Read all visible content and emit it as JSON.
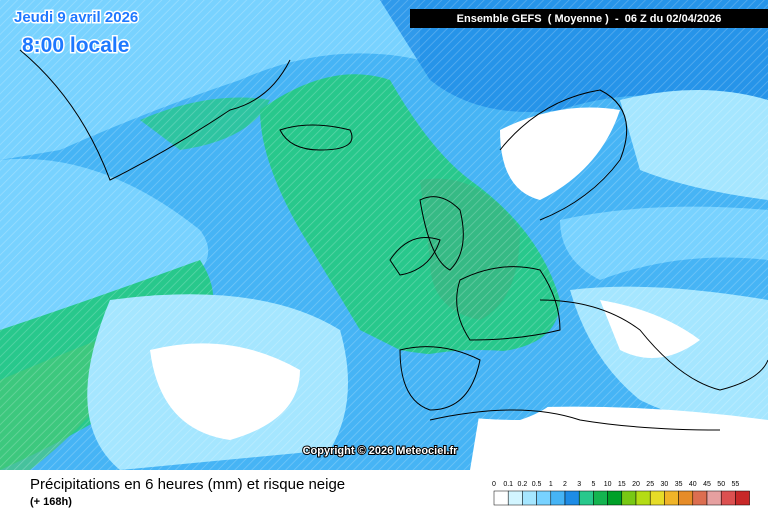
{
  "header": {
    "date": "Jeudi 9 avril 2026",
    "time": "8:00 locale",
    "run": "Ensemble GEFS  ( Moyenne )  -  06 Z du 02/04/2026"
  },
  "map": {
    "copyright": "Copyright © 2026 Meteociel.fr"
  },
  "footer": {
    "title": "Précipitations en 6 heures (mm) et risque neige",
    "lead": "(+ 168h)"
  },
  "legend": {
    "labels": [
      0,
      0.1,
      0.2,
      0.5,
      1,
      2,
      3,
      5,
      10,
      15,
      20,
      25,
      30,
      35,
      40,
      45,
      50,
      55
    ],
    "colors": [
      "#ffffff",
      "#d2f5ff",
      "#a5e6ff",
      "#78d2ff",
      "#46b4f5",
      "#1e8ce6",
      "#28c88c",
      "#14b450",
      "#00a028",
      "#78c814",
      "#b4dc14",
      "#e6dc28",
      "#f0b428",
      "#e68c28",
      "#dc6e50",
      "#e6a0a0",
      "#dc5050",
      "#c82828"
    ]
  }
}
